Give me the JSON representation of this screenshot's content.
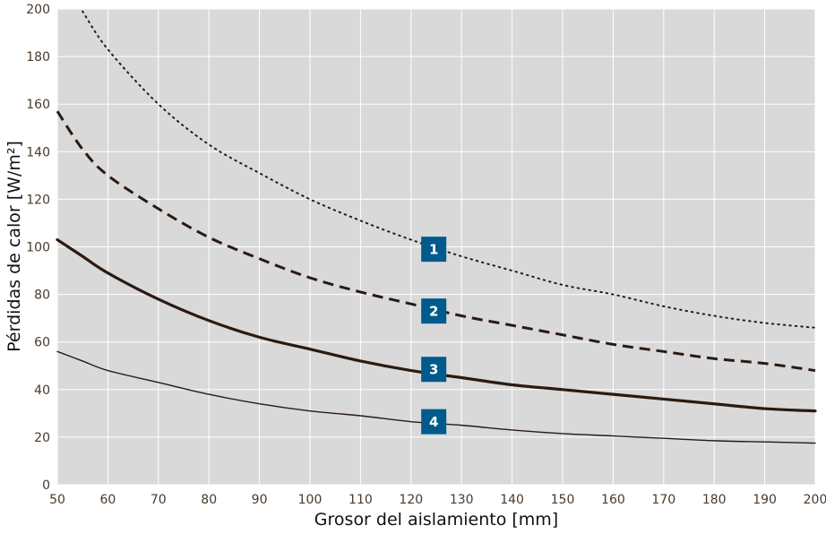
{
  "chart_data": {
    "type": "line",
    "title": "",
    "xlabel": "Grosor del aislamiento [mm]",
    "ylabel": "Pérdidas de calor [W/m²]",
    "xlim": [
      50,
      200
    ],
    "ylim": [
      0,
      200
    ],
    "x_ticks": [
      50,
      60,
      70,
      80,
      90,
      100,
      110,
      120,
      130,
      140,
      150,
      160,
      170,
      180,
      190,
      200
    ],
    "y_ticks": [
      0,
      20,
      40,
      60,
      80,
      100,
      120,
      140,
      160,
      180,
      200
    ],
    "grid": true,
    "x": [
      50,
      55,
      60,
      70,
      80,
      90,
      100,
      110,
      120,
      130,
      140,
      150,
      160,
      170,
      180,
      190,
      200
    ],
    "series": [
      {
        "name": "1",
        "style": "dotted",
        "color": "#2b1a10",
        "values": [
          null,
          199,
          183,
          160,
          143,
          131,
          120,
          111,
          103,
          96,
          90,
          84,
          80,
          75,
          71,
          68,
          66
        ]
      },
      {
        "name": "2",
        "style": "dashed",
        "color": "#2b1a10",
        "values": [
          157,
          141,
          130,
          116,
          104,
          95,
          87,
          81,
          76,
          71,
          67,
          63,
          59,
          56,
          53,
          51,
          48
        ]
      },
      {
        "name": "3",
        "style": "solid-thick",
        "color": "#2b1a10",
        "values": [
          103,
          96,
          89,
          78,
          69,
          62,
          57,
          52,
          48,
          45,
          42,
          40,
          38,
          36,
          34,
          32,
          31
        ]
      },
      {
        "name": "4",
        "style": "solid-thin",
        "color": "#2b1a10",
        "values": [
          56,
          52,
          48,
          43,
          38,
          34,
          31,
          29,
          26.5,
          25,
          23,
          21.5,
          20.5,
          19.5,
          18.5,
          18,
          17.5
        ]
      }
    ],
    "labels": [
      {
        "text": "1",
        "x": 124.5,
        "y": 99
      },
      {
        "text": "2",
        "x": 124.5,
        "y": 73
      },
      {
        "text": "3",
        "x": 124.5,
        "y": 48.5
      },
      {
        "text": "4",
        "x": 124.5,
        "y": 26.5
      }
    ],
    "colors": {
      "plot_background": "#d9d9d9",
      "gridline": "#ffffff",
      "line": "#2b1a10",
      "label_badge": "#005a8c",
      "label_text": "#ffffff",
      "tick_text": "#4a3a2a"
    }
  }
}
